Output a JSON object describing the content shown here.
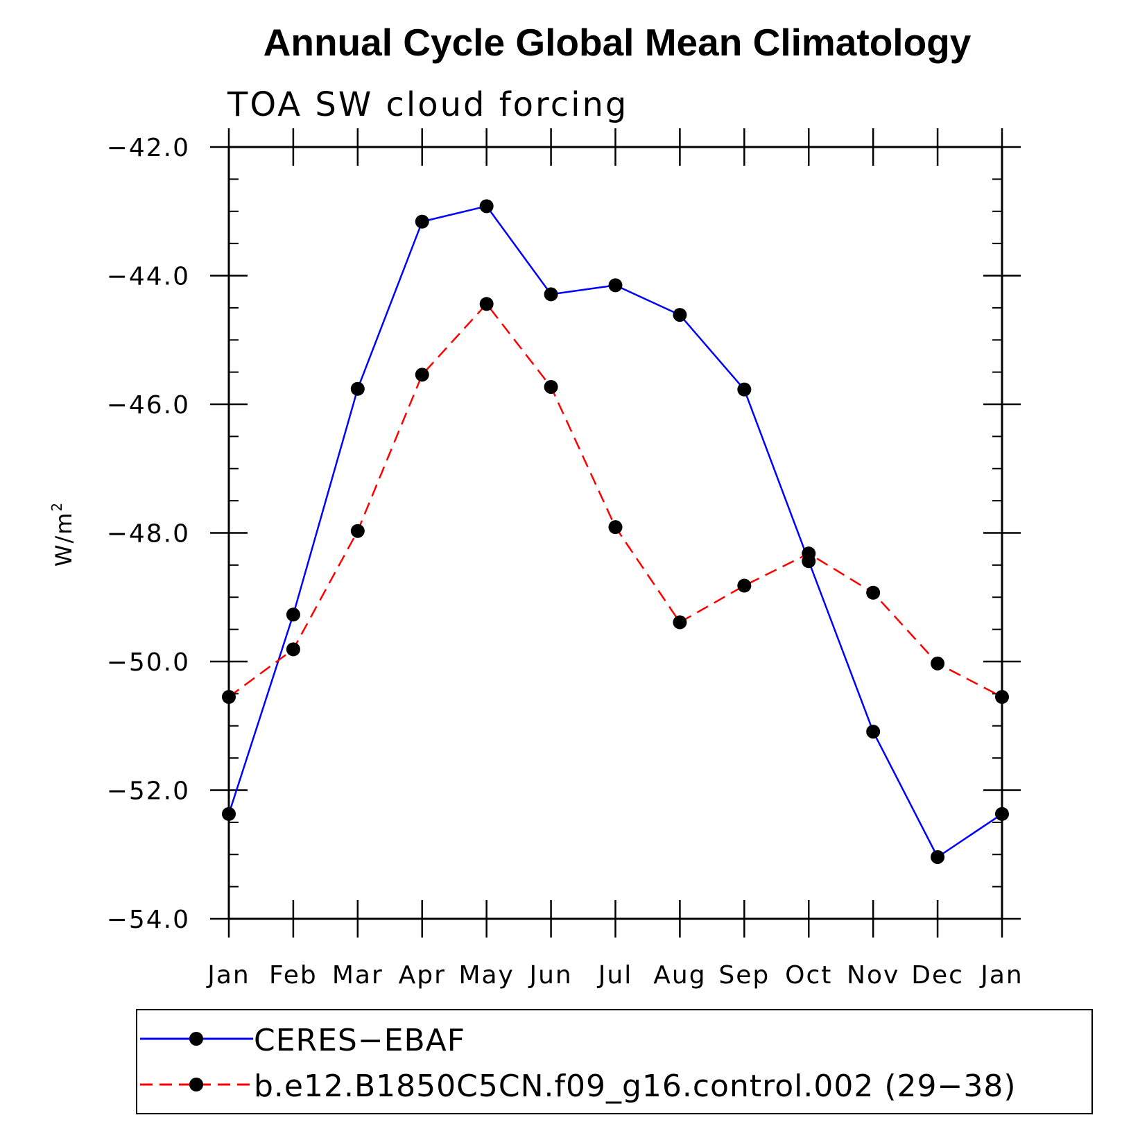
{
  "chart_data": {
    "type": "line",
    "title": "Annual Cycle Global Mean Climatology",
    "subtitle": "TOA SW cloud forcing",
    "ylabel": "W/m",
    "ylabel_superscript": "2",
    "xlabel": "",
    "categories": [
      "Jan",
      "Feb",
      "Mar",
      "Apr",
      "May",
      "Jun",
      "Jul",
      "Aug",
      "Sep",
      "Oct",
      "Nov",
      "Dec",
      "Jan"
    ],
    "yticks": [
      "-42.0",
      "-44.0",
      "-46.0",
      "-48.0",
      "-50.0",
      "-52.0",
      "-54.0"
    ],
    "ylim": [
      -54,
      -42
    ],
    "legend_placement": "bottom",
    "series": [
      {
        "name": "CERES−EBAF",
        "color": "#0000ff",
        "style": "solid",
        "marker": "filled-circle",
        "values": [
          -52.37,
          -49.27,
          -45.76,
          -43.16,
          -42.92,
          -44.29,
          -44.15,
          -44.61,
          -45.77,
          -48.44,
          -51.09,
          -53.04,
          -52.37
        ]
      },
      {
        "name": "b.e12.B1850C5CN.f09_g16.control.002 (29−38)",
        "color": "#ff0000",
        "style": "dashed",
        "marker": "filled-circle",
        "values": [
          -50.55,
          -49.81,
          -47.97,
          -45.54,
          -44.44,
          -45.73,
          -47.91,
          -49.39,
          -48.82,
          -48.32,
          -48.93,
          -50.03,
          -50.55
        ]
      }
    ]
  }
}
